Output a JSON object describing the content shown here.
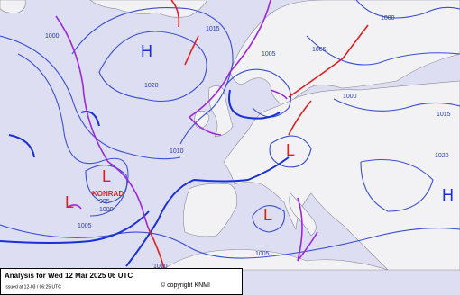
{
  "header": {
    "title": "Analysis for Wed 12 Mar 2025 06 UTC",
    "issued": "Issued at 12-03 / 06:25 UTC",
    "copyright": "© copyright KNMI"
  },
  "pressure_centers": [
    "H",
    "H",
    "L",
    "L",
    "L",
    "L"
  ],
  "storm_name": "KONRAD",
  "isobar_labels": [
    1000,
    1015,
    1020,
    1005,
    1000,
    1005,
    1000,
    1015,
    1020,
    1010,
    995,
    1000,
    1005,
    1005,
    1010
  ]
}
